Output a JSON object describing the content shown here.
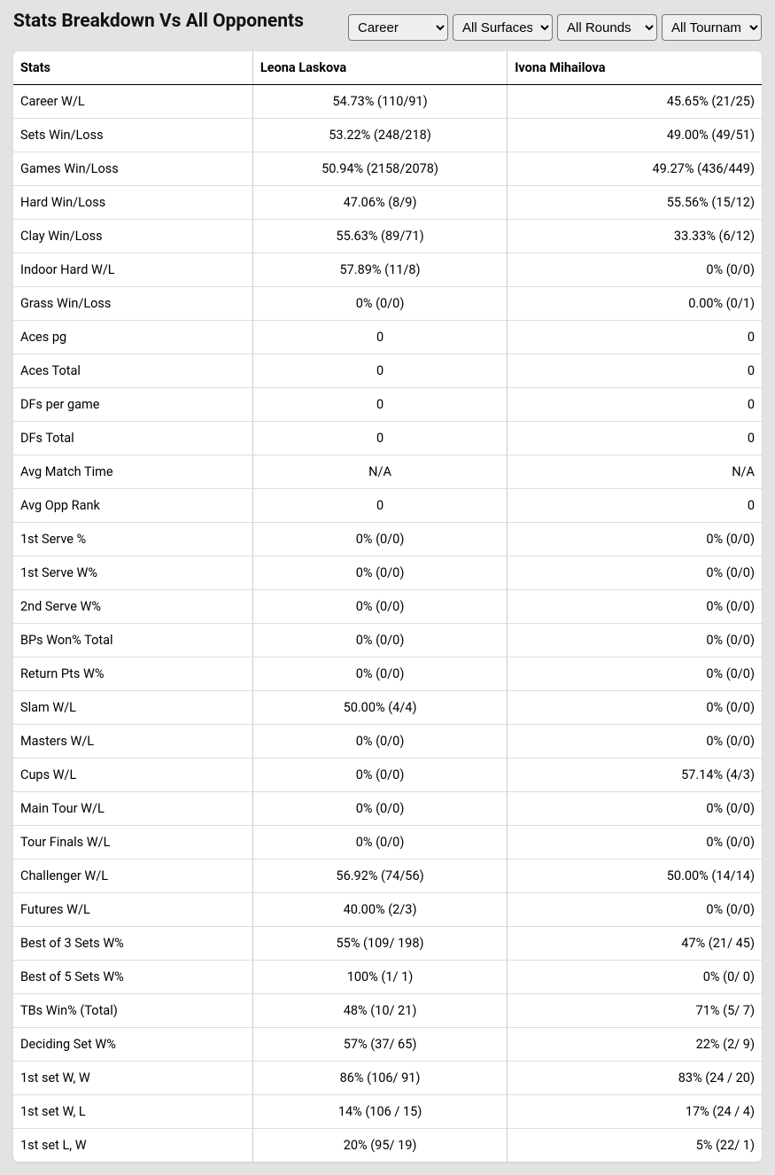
{
  "title": "Stats Breakdown Vs All Opponents",
  "filters": {
    "period": "Career",
    "surface": "All Surfaces",
    "round": "All Rounds",
    "tournament": "All Tournaments"
  },
  "columns": [
    "Stats",
    "Leona Laskova",
    "Ivona Mihailova"
  ],
  "rows": [
    {
      "label": "Career W/L",
      "p1": "54.73% (110/91)",
      "p2": "45.65% (21/25)"
    },
    {
      "label": "Sets Win/Loss",
      "p1": "53.22% (248/218)",
      "p2": "49.00% (49/51)"
    },
    {
      "label": "Games Win/Loss",
      "p1": "50.94% (2158/2078)",
      "p2": "49.27% (436/449)"
    },
    {
      "label": "Hard Win/Loss",
      "p1": "47.06% (8/9)",
      "p2": "55.56% (15/12)"
    },
    {
      "label": "Clay Win/Loss",
      "p1": "55.63% (89/71)",
      "p2": "33.33% (6/12)"
    },
    {
      "label": "Indoor Hard W/L",
      "p1": "57.89% (11/8)",
      "p2": "0% (0/0)"
    },
    {
      "label": "Grass Win/Loss",
      "p1": "0% (0/0)",
      "p2": "0.00% (0/1)"
    },
    {
      "label": "Aces pg",
      "p1": "0",
      "p2": "0"
    },
    {
      "label": "Aces Total",
      "p1": "0",
      "p2": "0"
    },
    {
      "label": "DFs per game",
      "p1": "0",
      "p2": "0"
    },
    {
      "label": "DFs Total",
      "p1": "0",
      "p2": "0"
    },
    {
      "label": "Avg Match Time",
      "p1": "N/A",
      "p2": "N/A"
    },
    {
      "label": "Avg Opp Rank",
      "p1": "0",
      "p2": "0"
    },
    {
      "label": "1st Serve %",
      "p1": "0% (0/0)",
      "p2": "0% (0/0)"
    },
    {
      "label": "1st Serve W%",
      "p1": "0% (0/0)",
      "p2": "0% (0/0)"
    },
    {
      "label": "2nd Serve W%",
      "p1": "0% (0/0)",
      "p2": "0% (0/0)"
    },
    {
      "label": "BPs Won% Total",
      "p1": "0% (0/0)",
      "p2": "0% (0/0)"
    },
    {
      "label": "Return Pts W%",
      "p1": "0% (0/0)",
      "p2": "0% (0/0)"
    },
    {
      "label": "Slam W/L",
      "p1": "50.00% (4/4)",
      "p2": "0% (0/0)"
    },
    {
      "label": "Masters W/L",
      "p1": "0% (0/0)",
      "p2": "0% (0/0)"
    },
    {
      "label": "Cups W/L",
      "p1": "0% (0/0)",
      "p2": "57.14% (4/3)"
    },
    {
      "label": "Main Tour W/L",
      "p1": "0% (0/0)",
      "p2": "0% (0/0)"
    },
    {
      "label": "Tour Finals W/L",
      "p1": "0% (0/0)",
      "p2": "0% (0/0)"
    },
    {
      "label": "Challenger W/L",
      "p1": "56.92% (74/56)",
      "p2": "50.00% (14/14)"
    },
    {
      "label": "Futures W/L",
      "p1": "40.00% (2/3)",
      "p2": "0% (0/0)"
    },
    {
      "label": "Best of 3 Sets W%",
      "p1": "55% (109/ 198)",
      "p2": "47% (21/ 45)"
    },
    {
      "label": "Best of 5 Sets W%",
      "p1": "100% (1/ 1)",
      "p2": "0% (0/ 0)"
    },
    {
      "label": "TBs Win% (Total)",
      "p1": "48% (10/ 21)",
      "p2": "71% (5/ 7)"
    },
    {
      "label": "Deciding Set W%",
      "p1": "57% (37/ 65)",
      "p2": "22% (2/ 9)"
    },
    {
      "label": "1st set W, W",
      "p1": "86% (106/ 91)",
      "p2": "83% (24 / 20)"
    },
    {
      "label": "1st set W, L",
      "p1": "14% (106 / 15)",
      "p2": "17% (24 / 4)"
    },
    {
      "label": "1st set L, W",
      "p1": "20% (95/ 19)",
      "p2": "5% (22/ 1)"
    }
  ]
}
